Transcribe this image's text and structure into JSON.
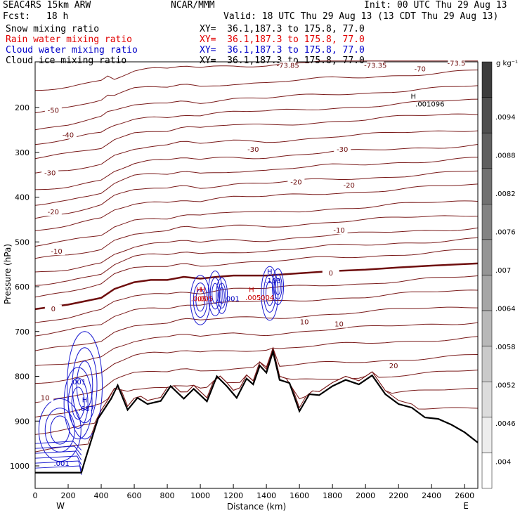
{
  "header": {
    "model": "SEAC4RS 15km ARW",
    "org": "NCAR/MMM",
    "init": "Init: 00 UTC Thu 29 Aug 13",
    "fcst_label": "Fcst:",
    "fcst_value": "18 h",
    "valid": "Valid: 18 UTC Thu 29 Aug 13 (13 CDT Thu 29 Aug 13)"
  },
  "fields": [
    {
      "name": "Snow mixing ratio",
      "xy": "XY=  36.1,187.3 to 175.8, 77.0",
      "color": "#000000"
    },
    {
      "name": "Rain water mixing ratio",
      "xy": "XY=  36.1,187.3 to 175.8, 77.0",
      "color": "#e00000"
    },
    {
      "name": "Cloud water mixing ratio",
      "xy": "XY=  36.1,187.3 to 175.8, 77.0",
      "color": "#0000c8"
    },
    {
      "name": "Cloud ice mixing ratio",
      "xy": "XY=  36.1,187.3 to 175.8, 77.0",
      "color": "#000000"
    }
  ],
  "chart_data": {
    "type": "contour cross-section",
    "xlabel": "Distance (km)",
    "ylabel": "Pressure (hPa)",
    "x_ticks": [
      0,
      200,
      400,
      600,
      800,
      1000,
      1200,
      1400,
      1600,
      1800,
      2000,
      2200,
      2400,
      2600
    ],
    "y_ticks": [
      200,
      300,
      400,
      500,
      600,
      700,
      800,
      900,
      1000
    ],
    "xlim": [
      0,
      2680
    ],
    "ylim": [
      1050,
      100
    ],
    "west_label": "W",
    "east_label": "E",
    "colorbar": {
      "unit": "g kg⁻¹",
      "ticks": [
        ".0094",
        ".0088",
        ".0082",
        ".0076",
        ".007",
        ".0064",
        ".0058",
        ".0052",
        ".0046",
        ".004"
      ]
    },
    "temperature_contour_labels": [
      {
        "text": "-73.85",
        "x": 1530,
        "p": 110
      },
      {
        "text": "-73.35",
        "x": 2060,
        "p": 110
      },
      {
        "text": "-70",
        "x": 2330,
        "p": 118
      },
      {
        "text": "-73.5",
        "x": 2550,
        "p": 105
      },
      {
        "text": "-50",
        "x": 110,
        "p": 210
      },
      {
        "text": "-40",
        "x": 200,
        "p": 265
      },
      {
        "text": "-30",
        "x": 1320,
        "p": 297
      },
      {
        "text": "-30",
        "x": 1860,
        "p": 297
      },
      {
        "text": "-30",
        "x": 90,
        "p": 350
      },
      {
        "text": "-20",
        "x": 1580,
        "p": 370
      },
      {
        "text": "-20",
        "x": 1900,
        "p": 377
      },
      {
        "text": "-20",
        "x": 110,
        "p": 437
      },
      {
        "text": "-10",
        "x": 1840,
        "p": 478
      },
      {
        "text": "-10",
        "x": 130,
        "p": 525
      },
      {
        "text": "0",
        "x": 1790,
        "p": 573
      },
      {
        "text": "0",
        "x": 110,
        "p": 653
      },
      {
        "text": "10",
        "x": 1630,
        "p": 682
      },
      {
        "text": "10",
        "x": 1840,
        "p": 687
      },
      {
        "text": "20",
        "x": 2170,
        "p": 780
      },
      {
        "text": "10",
        "x": 60,
        "p": 852
      }
    ],
    "freezing_level_hpa": [
      [
        0,
        650
      ],
      [
        200,
        640
      ],
      [
        400,
        625
      ],
      [
        480,
        605
      ],
      [
        520,
        600
      ],
      [
        600,
        590
      ],
      [
        700,
        585
      ],
      [
        800,
        585
      ],
      [
        900,
        578
      ],
      [
        1000,
        582
      ],
      [
        1100,
        578
      ],
      [
        1200,
        575
      ],
      [
        1400,
        575
      ],
      [
        1600,
        570
      ],
      [
        1800,
        565
      ],
      [
        2000,
        562
      ],
      [
        2200,
        557
      ],
      [
        2400,
        553
      ],
      [
        2680,
        548
      ]
    ],
    "terrain_hpa": [
      [
        0,
        1015
      ],
      [
        280,
        1015
      ],
      [
        300,
        990
      ],
      [
        380,
        895
      ],
      [
        460,
        850
      ],
      [
        500,
        820
      ],
      [
        560,
        875
      ],
      [
        620,
        848
      ],
      [
        680,
        862
      ],
      [
        760,
        855
      ],
      [
        820,
        822
      ],
      [
        900,
        850
      ],
      [
        960,
        828
      ],
      [
        1040,
        856
      ],
      [
        1100,
        800
      ],
      [
        1160,
        822
      ],
      [
        1220,
        848
      ],
      [
        1280,
        805
      ],
      [
        1320,
        818
      ],
      [
        1360,
        776
      ],
      [
        1400,
        792
      ],
      [
        1440,
        745
      ],
      [
        1480,
        808
      ],
      [
        1540,
        815
      ],
      [
        1600,
        878
      ],
      [
        1660,
        840
      ],
      [
        1720,
        842
      ],
      [
        1800,
        822
      ],
      [
        1880,
        808
      ],
      [
        1960,
        818
      ],
      [
        2040,
        798
      ],
      [
        2120,
        840
      ],
      [
        2200,
        862
      ],
      [
        2280,
        870
      ],
      [
        2360,
        892
      ],
      [
        2440,
        895
      ],
      [
        2520,
        908
      ],
      [
        2600,
        925
      ],
      [
        2680,
        948
      ]
    ],
    "mixing_ratio_labels": [
      {
        "text": "H",
        "x": 990,
        "p": 612,
        "color": "#cc0000"
      },
      {
        "text": "H",
        "x": 1015,
        "p": 612,
        "color": "#cc0000"
      },
      {
        "text": ".005",
        "x": 990,
        "p": 632,
        "color": "#cc0000"
      },
      {
        "text": ".005",
        "x": 1030,
        "p": 632,
        "color": "#cc0000"
      },
      {
        "text": ".001",
        "x": 1190,
        "p": 632,
        "color": "#0000c0"
      },
      {
        "text": "H",
        "x": 1310,
        "p": 612,
        "color": "#cc0000"
      },
      {
        "text": ".005",
        "x": 1320,
        "p": 630,
        "color": "#cc0000"
      },
      {
        "text": ".004",
        "x": 1400,
        "p": 630,
        "color": "#cc0000"
      },
      {
        "text": "H",
        "x": 1420,
        "p": 572,
        "color": "#0000c0"
      },
      {
        "text": ".103",
        "x": 1440,
        "p": 592,
        "color": "#0000c0"
      },
      {
        "text": "H",
        "x": 2290,
        "p": 180,
        "color": "#000000"
      },
      {
        "text": ".001096",
        "x": 2390,
        "p": 198,
        "color": "#000000"
      },
      {
        "text": ".001",
        "x": 260,
        "p": 818,
        "color": "#0000c0"
      },
      {
        "text": "H",
        "x": 300,
        "p": 858,
        "color": "#0000c0"
      },
      {
        "text": ".687",
        "x": 310,
        "p": 878,
        "color": "#0000c0"
      },
      {
        "text": ".001",
        "x": 160,
        "p": 1000,
        "color": "#0000c0"
      }
    ]
  }
}
